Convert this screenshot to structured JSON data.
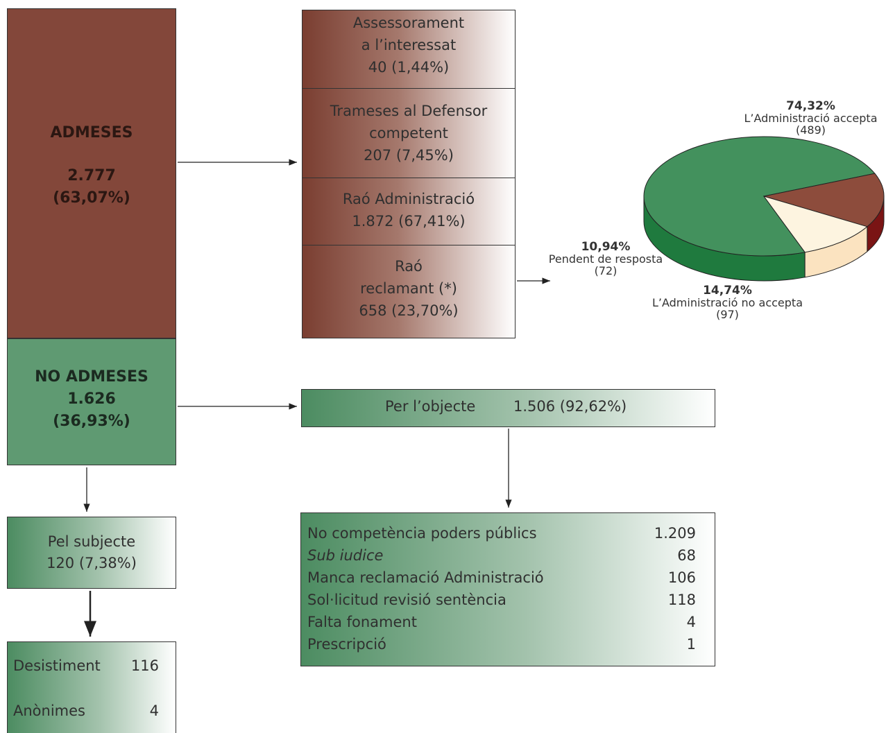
{
  "admeses": {
    "label": "ADMESES",
    "count": "2.777",
    "pct": "(63,07%)"
  },
  "no_admeses": {
    "label": "NO ADMESES",
    "count": "1.626",
    "pct": "(36,93%)"
  },
  "outcomes": [
    {
      "lines": [
        "Assessorament",
        "a l’interessat",
        "40 (1,44%)"
      ]
    },
    {
      "lines": [
        "Trameses al Defensor",
        "competent",
        "207 (7,45%)"
      ]
    },
    {
      "lines": [
        "Raó Administració",
        "1.872 (67,41%)"
      ]
    },
    {
      "lines": [
        "Raó",
        "reclamant (*)",
        "658 (23,70%)"
      ]
    }
  ],
  "per_objecte": {
    "label": "Per l’objecte",
    "value": "1.506 (92,62%)"
  },
  "objecte_detail": [
    {
      "label": "No competència poders públics",
      "value": "1.209",
      "italic": false
    },
    {
      "label": "Sub iudice",
      "value": "68",
      "italic": true
    },
    {
      "label": "Manca reclamació Administració",
      "value": "106",
      "italic": false
    },
    {
      "label": "Sol·licitud revisió sentència",
      "value": "118",
      "italic": false
    },
    {
      "label": "Falta fonament",
      "value": "4",
      "italic": false
    },
    {
      "label": "Prescripció",
      "value": "1",
      "italic": false
    }
  ],
  "pel_subjecte": {
    "label": "Pel subjecte",
    "value": "120 (7,38%)"
  },
  "subjecte_detail": [
    {
      "label": "Desistiment",
      "value": "116"
    },
    {
      "label": "Anònimes",
      "value": "4"
    }
  ],
  "chart_data": {
    "type": "pie",
    "slices": [
      {
        "pct_label": "74,32%",
        "label": "L’Administració accepta",
        "count_label": "(489)",
        "value": 74.32,
        "color": "#43915d",
        "side_color": "#1f7a3e"
      },
      {
        "pct_label": "14,74%",
        "label": "L’Administració no accepta",
        "count_label": "(97)",
        "value": 14.74,
        "color": "#8d4c3c",
        "side_color": "#7a1414"
      },
      {
        "pct_label": "10,94%",
        "label": "Pendent de resposta",
        "count_label": "(72)",
        "value": 10.94,
        "color": "#fdf4e0",
        "side_color": "#fbe3c0"
      }
    ]
  }
}
